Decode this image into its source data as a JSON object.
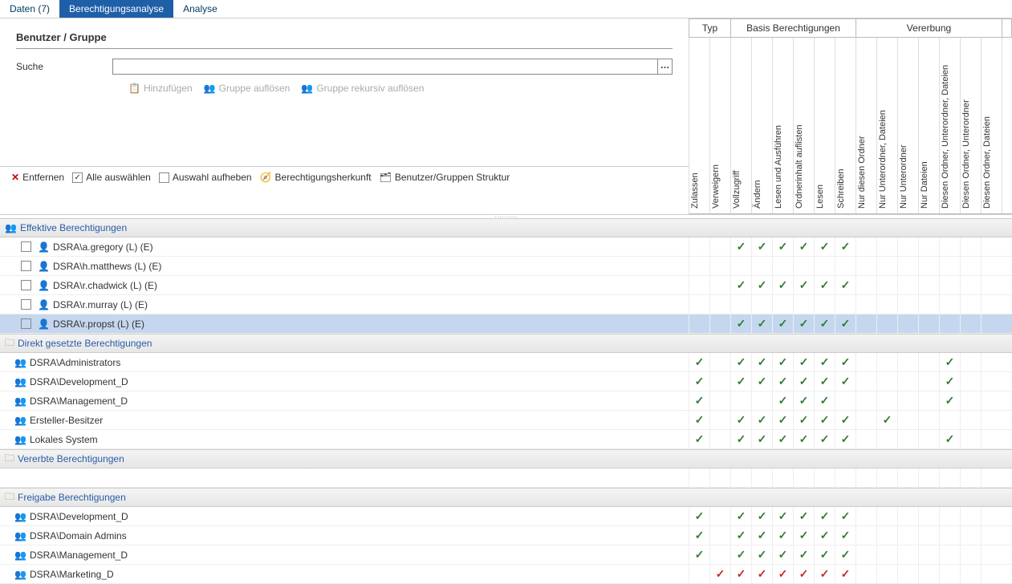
{
  "tabs": [
    {
      "label": "Daten (7)",
      "active": false
    },
    {
      "label": "Berechtigungsanalyse",
      "active": true
    },
    {
      "label": "Analyse",
      "active": false
    }
  ],
  "section_title": "Benutzer / Gruppe",
  "search_label": "Suche",
  "search_value": "",
  "buttons": {
    "add": "Hinzufügen",
    "resolve": "Gruppe auflösen",
    "resolve_rec": "Gruppe rekursiv auflösen"
  },
  "toolbar": {
    "remove": "Entfernen",
    "select_all": "Alle auswählen",
    "clear_sel": "Auswahl aufheben",
    "perm_origin": "Berechtigungsherkunft",
    "struct": "Benutzer/Gruppen Struktur"
  },
  "col_groups": {
    "typ": "Typ",
    "basis": "Basis Berechtigungen",
    "ver": "Vererbung"
  },
  "columns": [
    "Zulassen",
    "Verweigern",
    "Vollzugriff",
    "Ändern",
    "Lesen und Ausführen",
    "Ordnerinhalt auflisten",
    "Lesen",
    "Schreiben",
    "Nur diesen Ordner",
    "Nur Unterordner, Dateien",
    "Nur Unterordner",
    "Nur Dateien",
    "Diesen Ordner, Unterordner, Dateien",
    "Diesen Ordner, Unterordner",
    "Diesen Ordner, Dateien"
  ],
  "sections": [
    {
      "title": "Effektive Berechtigungen",
      "icon": "persons",
      "rows": [
        {
          "name": "DSRA\\a.gregory (L) (E)",
          "icon": "person",
          "checkbox": true,
          "checks": {
            "2": "g",
            "3": "g",
            "4": "g",
            "5": "g",
            "6": "g",
            "7": "g"
          }
        },
        {
          "name": "DSRA\\h.matthews (L) (E)",
          "icon": "person",
          "checkbox": true,
          "checks": {}
        },
        {
          "name": "DSRA\\r.chadwick (L) (E)",
          "icon": "person",
          "checkbox": true,
          "checks": {
            "2": "g",
            "3": "g",
            "4": "g",
            "5": "g",
            "6": "g",
            "7": "g"
          }
        },
        {
          "name": "DSRA\\r.murray (L) (E)",
          "icon": "person",
          "checkbox": true,
          "checks": {}
        },
        {
          "name": "DSRA\\r.propst (L) (E)",
          "icon": "person",
          "checkbox": true,
          "selected": true,
          "checks": {
            "2": "g",
            "3": "g",
            "4": "g",
            "5": "g",
            "6": "g",
            "7": "g"
          }
        }
      ]
    },
    {
      "title": "Direkt gesetzte Berechtigungen",
      "icon": "folder",
      "rows": [
        {
          "name": "DSRA\\Administrators",
          "icon": "group",
          "checks": {
            "0": "g",
            "2": "g",
            "3": "g",
            "4": "g",
            "5": "g",
            "6": "g",
            "7": "g",
            "12": "g"
          }
        },
        {
          "name": "DSRA\\Development_D",
          "icon": "group",
          "checks": {
            "0": "g",
            "2": "g",
            "3": "g",
            "4": "g",
            "5": "g",
            "6": "g",
            "7": "g",
            "12": "g"
          }
        },
        {
          "name": "DSRA\\Management_D",
          "icon": "group",
          "checks": {
            "0": "g",
            "4": "g",
            "5": "g",
            "6": "g",
            "12": "g"
          }
        },
        {
          "name": "Ersteller-Besitzer",
          "icon": "group",
          "checks": {
            "0": "g",
            "2": "g",
            "3": "g",
            "4": "g",
            "5": "g",
            "6": "g",
            "7": "g",
            "9": "g"
          }
        },
        {
          "name": "Lokales System",
          "icon": "group",
          "checks": {
            "0": "g",
            "2": "g",
            "3": "g",
            "4": "g",
            "5": "g",
            "6": "g",
            "7": "g",
            "12": "g"
          }
        }
      ]
    },
    {
      "title": "Vererbte Berechtigungen",
      "icon": "folder",
      "rows": [
        {
          "blank": true
        }
      ]
    },
    {
      "title": "Freigabe Berechtigungen",
      "icon": "folder",
      "rows": [
        {
          "name": "DSRA\\Development_D",
          "icon": "group",
          "checks": {
            "0": "g",
            "2": "g",
            "3": "g",
            "4": "g",
            "5": "g",
            "6": "g",
            "7": "g"
          }
        },
        {
          "name": "DSRA\\Domain Admins",
          "icon": "group",
          "checks": {
            "0": "g",
            "2": "g",
            "3": "g",
            "4": "g",
            "5": "g",
            "6": "g",
            "7": "g"
          }
        },
        {
          "name": "DSRA\\Management_D",
          "icon": "group",
          "checks": {
            "0": "g",
            "2": "g",
            "3": "g",
            "4": "g",
            "5": "g",
            "6": "g",
            "7": "g"
          }
        },
        {
          "name": "DSRA\\Marketing_D",
          "icon": "group",
          "checks": {
            "1": "r",
            "2": "r",
            "3": "r",
            "4": "r",
            "5": "r",
            "6": "r",
            "7": "r"
          }
        }
      ]
    }
  ]
}
